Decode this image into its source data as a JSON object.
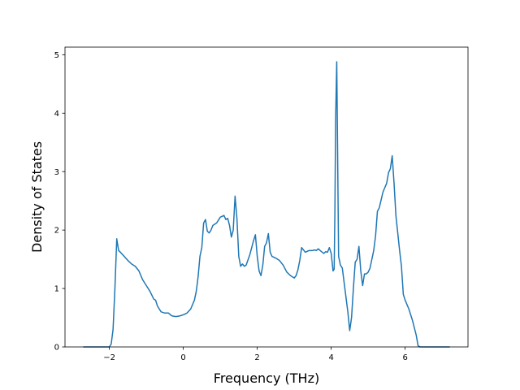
{
  "chart_data": {
    "type": "line",
    "title": "",
    "xlabel": "Frequency (THz)",
    "ylabel": "Density of States",
    "xlim": [
      -3.2,
      7.7
    ],
    "ylim": [
      0,
      5.13
    ],
    "xticks": [
      -2,
      0,
      2,
      4,
      6
    ],
    "yticks": [
      0,
      1,
      2,
      3,
      4,
      5
    ],
    "xtick_labels": [
      "−2",
      "0",
      "2",
      "4",
      "6"
    ],
    "ytick_labels": [
      "0",
      "1",
      "2",
      "3",
      "4",
      "5"
    ],
    "grid": false,
    "legend": "none",
    "series": [
      {
        "color": "#1f77b4",
        "x": [
          -2.7,
          -2.3,
          -2.0,
          -1.95,
          -1.9,
          -1.85,
          -1.8,
          -1.75,
          -1.7,
          -1.6,
          -1.5,
          -1.4,
          -1.3,
          -1.2,
          -1.1,
          -1.0,
          -0.9,
          -0.8,
          -0.75,
          -0.7,
          -0.6,
          -0.5,
          -0.4,
          -0.35,
          -0.3,
          -0.2,
          -0.1,
          0.0,
          0.1,
          0.2,
          0.3,
          0.35,
          0.4,
          0.45,
          0.5,
          0.55,
          0.6,
          0.65,
          0.7,
          0.75,
          0.8,
          0.9,
          1.0,
          1.1,
          1.15,
          1.2,
          1.25,
          1.3,
          1.35,
          1.4,
          1.45,
          1.5,
          1.55,
          1.6,
          1.65,
          1.7,
          1.8,
          1.9,
          1.95,
          2.0,
          2.05,
          2.1,
          2.15,
          2.2,
          2.25,
          2.3,
          2.35,
          2.4,
          2.5,
          2.6,
          2.7,
          2.8,
          2.9,
          3.0,
          3.05,
          3.1,
          3.15,
          3.2,
          3.3,
          3.4,
          3.5,
          3.55,
          3.6,
          3.65,
          3.7,
          3.8,
          3.85,
          3.9,
          3.95,
          4.0,
          4.05,
          4.08,
          4.1,
          4.12,
          4.15,
          4.2,
          4.25,
          4.3,
          4.4,
          4.45,
          4.5,
          4.55,
          4.6,
          4.65,
          4.7,
          4.75,
          4.8,
          4.85,
          4.9,
          4.95,
          5.0,
          5.05,
          5.1,
          5.15,
          5.2,
          5.25,
          5.3,
          5.4,
          5.5,
          5.55,
          5.6,
          5.65,
          5.7,
          5.75,
          5.8,
          5.85,
          5.9,
          5.95,
          6.0,
          6.1,
          6.2,
          6.3,
          6.35,
          6.4,
          6.5,
          7.2
        ],
        "y": [
          0,
          0,
          0,
          0.05,
          0.3,
          1.0,
          1.85,
          1.65,
          1.62,
          1.55,
          1.48,
          1.42,
          1.38,
          1.3,
          1.15,
          1.05,
          0.95,
          0.82,
          0.8,
          0.7,
          0.6,
          0.58,
          0.58,
          0.55,
          0.53,
          0.52,
          0.53,
          0.55,
          0.58,
          0.65,
          0.8,
          0.95,
          1.2,
          1.55,
          1.7,
          2.12,
          2.18,
          1.98,
          1.95,
          2.0,
          2.08,
          2.12,
          2.22,
          2.25,
          2.18,
          2.2,
          2.08,
          1.88,
          2.0,
          2.58,
          2.2,
          1.55,
          1.38,
          1.42,
          1.38,
          1.4,
          1.58,
          1.82,
          1.92,
          1.55,
          1.3,
          1.22,
          1.4,
          1.72,
          1.78,
          1.94,
          1.62,
          1.55,
          1.52,
          1.48,
          1.4,
          1.28,
          1.22,
          1.18,
          1.22,
          1.32,
          1.48,
          1.7,
          1.62,
          1.65,
          1.65,
          1.66,
          1.65,
          1.68,
          1.65,
          1.6,
          1.63,
          1.62,
          1.7,
          1.6,
          1.3,
          1.33,
          2.3,
          3.9,
          4.88,
          1.55,
          1.4,
          1.35,
          0.85,
          0.6,
          0.28,
          0.5,
          1.0,
          1.45,
          1.5,
          1.72,
          1.3,
          1.05,
          1.25,
          1.25,
          1.28,
          1.35,
          1.5,
          1.65,
          1.9,
          2.32,
          2.38,
          2.65,
          2.8,
          2.98,
          3.05,
          3.27,
          2.8,
          2.25,
          1.95,
          1.65,
          1.38,
          0.9,
          0.8,
          0.65,
          0.45,
          0.2,
          0.02,
          0,
          0,
          0
        ]
      }
    ]
  }
}
